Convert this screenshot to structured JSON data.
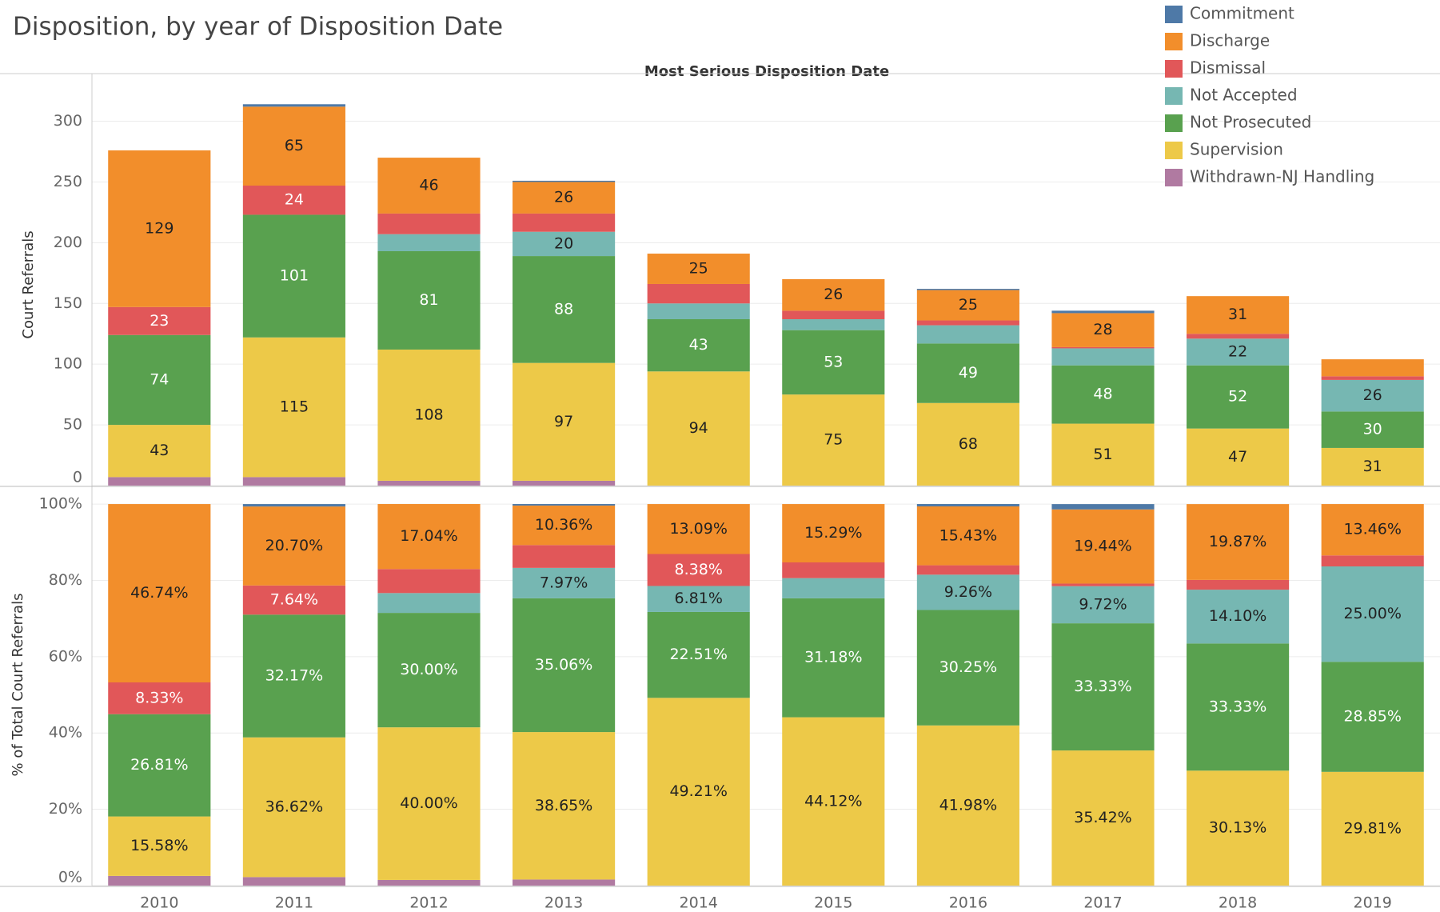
{
  "chart_data": [
    {
      "type": "stacked_bar",
      "title": "Disposition, by year of Disposition Date",
      "x_label": "Most Serious Disposition Date",
      "y_label": "Court Referrals",
      "ylim": [
        0,
        330
      ],
      "yticks": [
        0,
        50,
        100,
        150,
        200,
        250,
        300
      ],
      "grid": true,
      "legend": "top-right",
      "series": [
        {
          "name": "Commitment",
          "color": "#4e79a7",
          "values": [
            0,
            2,
            0,
            1,
            0,
            0,
            1,
            2,
            0,
            0
          ]
        },
        {
          "name": "Discharge",
          "color": "#f28e2b",
          "values": [
            129,
            65,
            46,
            26,
            25,
            26,
            25,
            28,
            31,
            14
          ]
        },
        {
          "name": "Dismissal",
          "color": "#e15759",
          "values": [
            23,
            24,
            17,
            15,
            16,
            7,
            4,
            1,
            4,
            3
          ]
        },
        {
          "name": "Not Accepted",
          "color": "#76b7b2",
          "values": [
            0,
            0,
            14,
            20,
            13,
            9,
            15,
            14,
            22,
            26
          ]
        },
        {
          "name": "Not Prosecuted",
          "color": "#59a14f",
          "values": [
            74,
            101,
            81,
            88,
            43,
            53,
            49,
            48,
            52,
            30
          ]
        },
        {
          "name": "Supervision",
          "color": "#edc948",
          "values": [
            43,
            115,
            108,
            97,
            94,
            75,
            68,
            51,
            47,
            31
          ]
        },
        {
          "name": "Withdrawn-NJ Handling",
          "color": "#b07aa1",
          "values": [
            7,
            7,
            4,
            4,
            0,
            0,
            0,
            0,
            0,
            0
          ]
        }
      ]
    },
    {
      "type": "stacked_bar",
      "y_label": "% of Total Court Referrals",
      "categories": [
        "2010",
        "2011",
        "2012",
        "2013",
        "2014",
        "2015",
        "2016",
        "2017",
        "2018",
        "2019"
      ],
      "ylim": [
        0,
        104
      ],
      "yticks": [
        {
          "value": 0,
          "label": "0%"
        },
        {
          "value": 20,
          "label": "20%"
        },
        {
          "value": 40,
          "label": "40%"
        },
        {
          "value": 60,
          "label": "60%"
        },
        {
          "value": 80,
          "label": "80%"
        },
        {
          "value": 100,
          "label": "100%"
        }
      ],
      "grid": true,
      "series": [
        {
          "values": [
            0,
            0.64,
            0,
            0.4,
            0,
            0,
            0.62,
            1.39,
            0,
            0
          ]
        },
        {
          "values": [
            46.74,
            20.7,
            17.04,
            10.36,
            13.09,
            15.29,
            15.43,
            19.44,
            19.87,
            13.46
          ],
          "value_labels": [
            "46.74%",
            "20.70%",
            "17.04%",
            "10.36%",
            "13.09%",
            "15.29%",
            "15.43%",
            "19.44%",
            "19.87%",
            "13.46%"
          ]
        },
        {
          "values": [
            8.33,
            7.64,
            6.3,
            5.98,
            8.38,
            4.12,
            2.47,
            0.69,
            2.56,
            2.88
          ],
          "value_labels": [
            "8.33%",
            "7.64%",
            null,
            null,
            "8.38%",
            null,
            null,
            null,
            null,
            null
          ]
        },
        {
          "values": [
            0,
            0,
            5.19,
            7.97,
            6.81,
            5.29,
            9.26,
            9.72,
            14.1,
            25.0
          ],
          "value_labels": [
            null,
            null,
            null,
            "7.97%",
            "6.81%",
            null,
            "9.26%",
            "9.72%",
            "14.10%",
            "25.00%"
          ]
        },
        {
          "values": [
            26.81,
            32.17,
            30.0,
            35.06,
            22.51,
            31.18,
            30.25,
            33.33,
            33.33,
            28.85
          ],
          "value_labels": [
            "26.81%",
            "32.17%",
            "30.00%",
            "35.06%",
            "22.51%",
            "31.18%",
            "30.25%",
            "33.33%",
            "33.33%",
            "28.85%"
          ]
        },
        {
          "values": [
            15.58,
            36.62,
            40.0,
            38.65,
            49.21,
            44.12,
            41.98,
            35.42,
            30.13,
            29.81
          ],
          "value_labels": [
            "15.58%",
            "36.62%",
            "40.00%",
            "38.65%",
            "49.21%",
            "44.12%",
            "41.98%",
            "35.42%",
            "30.13%",
            "29.81%"
          ]
        },
        {
          "values": [
            2.54,
            2.23,
            1.48,
            1.59,
            0,
            0,
            0,
            0,
            0,
            0
          ]
        }
      ]
    }
  ]
}
